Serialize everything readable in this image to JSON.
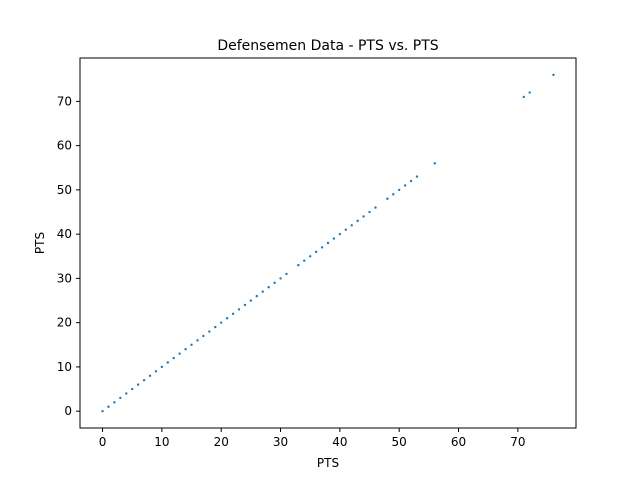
{
  "chart_data": {
    "type": "scatter",
    "title": "Defensemen Data - PTS vs. PTS",
    "xlabel": "PTS",
    "ylabel": "PTS",
    "xlim": [
      -3.8,
      79.8
    ],
    "ylim": [
      -3.8,
      79.8
    ],
    "xticks": [
      0,
      10,
      20,
      30,
      40,
      50,
      60,
      70
    ],
    "yticks": [
      0,
      10,
      20,
      30,
      40,
      50,
      60,
      70
    ],
    "grid": false,
    "marker_color": "#1f77b4",
    "series": [
      {
        "x": [
          0,
          1,
          2,
          3,
          4,
          5,
          6,
          7,
          8,
          9,
          10,
          11,
          12,
          13,
          14,
          15,
          16,
          17,
          18,
          19,
          20,
          21,
          22,
          23,
          24,
          25,
          26,
          27,
          28,
          29,
          30,
          31,
          33,
          34,
          35,
          36,
          37,
          38,
          39,
          40,
          41,
          42,
          43,
          44,
          45,
          46,
          48,
          49,
          50,
          51,
          52,
          53,
          56,
          71,
          72,
          76
        ],
        "y": [
          0,
          1,
          2,
          3,
          4,
          5,
          6,
          7,
          8,
          9,
          10,
          11,
          12,
          13,
          14,
          15,
          16,
          17,
          18,
          19,
          20,
          21,
          22,
          23,
          24,
          25,
          26,
          27,
          28,
          29,
          30,
          31,
          33,
          34,
          35,
          36,
          37,
          38,
          39,
          40,
          41,
          42,
          43,
          44,
          45,
          46,
          48,
          49,
          50,
          51,
          52,
          53,
          56,
          71,
          72,
          76
        ]
      }
    ]
  }
}
